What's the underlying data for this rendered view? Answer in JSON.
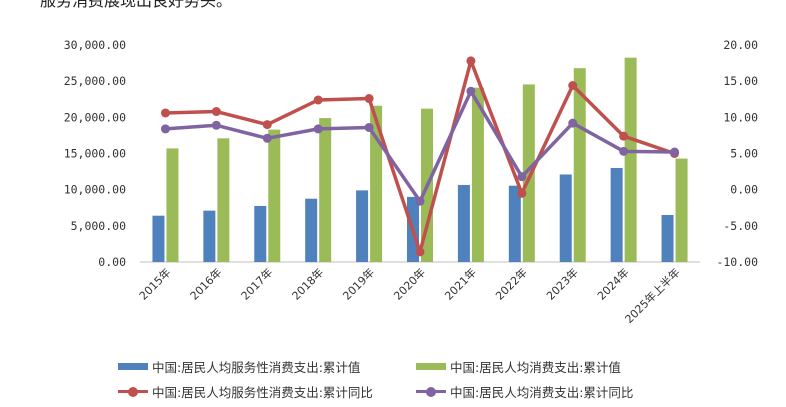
{
  "page": {
    "top_text": "服务消费展现出良好势头。"
  },
  "colors": {
    "bar_services": "#4f81bd",
    "bar_total": "#9bbb59",
    "line_services": "#c0504d",
    "line_total": "#8064a2",
    "axis": "#bfbfbf"
  },
  "chart_data": {
    "type": "bar",
    "categories": [
      "2015年",
      "2016年",
      "2017年",
      "2018年",
      "2019年",
      "2020年",
      "2021年",
      "2022年",
      "2023年",
      "2024年",
      "2025年上半年"
    ],
    "left_axis": {
      "ylim": [
        0,
        30000
      ],
      "ticks": [
        "0.00",
        "5,000.00",
        "10,000.00",
        "15,000.00",
        "20,000.00",
        "25,000.00",
        "30,000.00"
      ]
    },
    "right_axis": {
      "ylim": [
        -10,
        20
      ],
      "ticks": [
        "-10.00",
        "-5.00",
        "0.00",
        "5.00",
        "10.00",
        "15.00",
        "20.00"
      ]
    },
    "series": [
      {
        "name": "中国:居民人均服务性消费支出:累计值",
        "kind": "bar",
        "axis": "left",
        "values": [
          6400,
          7100,
          7750,
          8750,
          9900,
          9000,
          10650,
          10550,
          12100,
          13000,
          6500
        ]
      },
      {
        "name": "中国:居民人均消费支出:累计值",
        "kind": "bar",
        "axis": "left",
        "values": [
          15700,
          17100,
          18300,
          19900,
          21600,
          21200,
          24100,
          24550,
          26800,
          28250,
          14300
        ]
      },
      {
        "name": "中国:居民人均服务性消费支出:累计同比",
        "kind": "line",
        "axis": "right",
        "values": [
          10.6,
          10.8,
          9.0,
          12.4,
          12.6,
          -8.6,
          17.8,
          -0.5,
          14.4,
          7.4,
          5.0
        ]
      },
      {
        "name": "中国:居民人均消费支出:累计同比",
        "kind": "line",
        "axis": "right",
        "values": [
          8.4,
          8.9,
          7.1,
          8.4,
          8.6,
          -1.6,
          13.6,
          1.8,
          9.2,
          5.3,
          5.2
        ]
      }
    ],
    "legend_position": "bottom",
    "grid": false
  }
}
